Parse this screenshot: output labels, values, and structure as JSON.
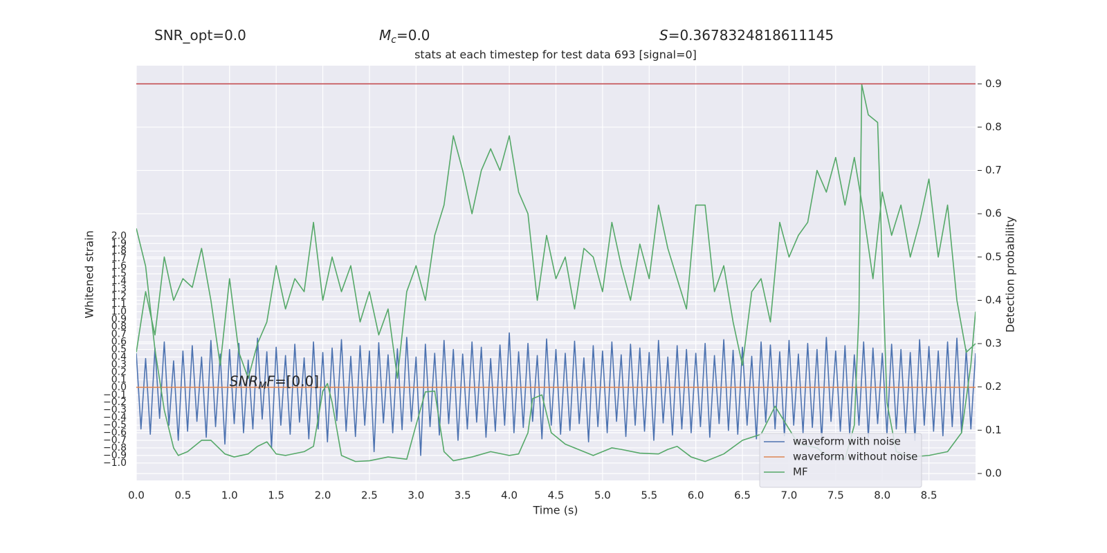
{
  "chart_data": {
    "type": "line",
    "title": "stats at each timestep for test data 693 [signal=0]",
    "stats": [
      {
        "text": "SNR_opt=0.0"
      },
      {
        "base": "M",
        "sub": "c",
        "rest": "=0.0"
      },
      {
        "base": "S",
        "rest": "=0.3678324818611145"
      }
    ],
    "annotation": {
      "base": "SNR",
      "sub": "M",
      "tail": "F",
      "rest": "=[0.0]",
      "x": 1.0,
      "y": 0.0
    },
    "x_label": "Time (s)",
    "y_label": "Whitened strain",
    "y2_label": "Detection probability",
    "xlim": [
      0,
      9
    ],
    "ylim": [
      -1.23,
      4.25
    ],
    "y2lim": [
      -0.016,
      0.942
    ],
    "grid": true,
    "legend": "lower right",
    "xticks": [
      {
        "value": 0,
        "label": "0.0"
      },
      0.5,
      {
        "value": 1,
        "label": "1.0"
      },
      1.5,
      {
        "value": 2,
        "label": "2.0"
      },
      2.5,
      {
        "value": 3,
        "label": "3.0"
      },
      3.5,
      {
        "value": 4,
        "label": "4.0"
      },
      4.5,
      {
        "value": 5,
        "label": "5.0"
      },
      5.5,
      {
        "value": 6,
        "label": "6.0"
      },
      6.5,
      {
        "value": 7,
        "label": "7.0"
      },
      7.5,
      {
        "value": 8,
        "label": "8.0"
      },
      8.5
    ],
    "yticks": [
      {
        "value": -1,
        "label": "−1.0"
      },
      {
        "value": -0.9,
        "label": "−0.9"
      },
      {
        "value": -0.8,
        "label": "−0.8"
      },
      {
        "value": -0.7,
        "label": "−0.7"
      },
      {
        "value": -0.6,
        "label": "−0.6"
      },
      {
        "value": -0.5,
        "label": "−0.5"
      },
      {
        "value": -0.4,
        "label": "−0.4"
      },
      {
        "value": -0.3,
        "label": "−0.3"
      },
      {
        "value": -0.2,
        "label": "−0.2"
      },
      {
        "value": -0.1,
        "label": "−0.1"
      },
      {
        "value": 0,
        "label": "0.0"
      },
      0.1,
      0.2,
      0.3,
      0.4,
      0.5,
      0.6,
      0.7,
      0.8,
      0.9,
      {
        "value": 1,
        "label": "1.0"
      },
      1.1,
      1.2,
      1.3,
      1.4,
      1.5,
      1.6,
      1.7,
      1.8,
      1.9,
      {
        "value": 2,
        "label": "2.0"
      }
    ],
    "y2ticks": [
      {
        "value": 0,
        "label": "0.0"
      },
      0.1,
      0.2,
      0.3,
      0.4,
      0.5,
      0.6,
      0.7,
      0.8,
      0.9
    ],
    "hlines": [
      {
        "value": 0.9,
        "axis": "y2",
        "color": "#c44e52"
      }
    ],
    "series": [
      {
        "name": "waveform with noise",
        "color": "#4c72b0",
        "x": [
          0,
          0.05,
          0.1,
          0.15,
          0.2,
          0.25,
          0.3,
          0.35,
          0.4,
          0.45,
          0.5,
          0.55,
          0.6,
          0.65,
          0.7,
          0.75,
          0.8,
          0.85,
          0.9,
          0.95,
          1,
          1.05,
          1.1,
          1.15,
          1.2,
          1.25,
          1.3,
          1.35,
          1.4,
          1.45,
          1.5,
          1.55,
          1.6,
          1.65,
          1.7,
          1.75,
          1.8,
          1.85,
          1.9,
          1.95,
          2,
          2.05,
          2.1,
          2.15,
          2.2,
          2.25,
          2.3,
          2.35,
          2.4,
          2.45,
          2.5,
          2.55,
          2.6,
          2.65,
          2.7,
          2.75,
          2.8,
          2.85,
          2.9,
          2.95,
          3,
          3.05,
          3.1,
          3.15,
          3.2,
          3.25,
          3.3,
          3.35,
          3.4,
          3.45,
          3.5,
          3.55,
          3.6,
          3.65,
          3.7,
          3.75,
          3.8,
          3.85,
          3.9,
          3.95,
          4,
          4.05,
          4.1,
          4.15,
          4.2,
          4.25,
          4.3,
          4.35,
          4.4,
          4.45,
          4.5,
          4.55,
          4.6,
          4.65,
          4.7,
          4.75,
          4.8,
          4.85,
          4.9,
          4.95,
          5,
          5.05,
          5.1,
          5.15,
          5.2,
          5.25,
          5.3,
          5.35,
          5.4,
          5.45,
          5.5,
          5.55,
          5.6,
          5.65,
          5.7,
          5.75,
          5.8,
          5.85,
          5.9,
          5.95,
          6,
          6.05,
          6.1,
          6.15,
          6.2,
          6.25,
          6.3,
          6.35,
          6.4,
          6.45,
          6.5,
          6.55,
          6.6,
          6.65,
          6.7,
          6.75,
          6.8,
          6.85,
          6.9,
          6.95,
          7,
          7.05,
          7.1,
          7.15,
          7.2,
          7.25,
          7.3,
          7.35,
          7.4,
          7.45,
          7.5,
          7.55,
          7.6,
          7.65,
          7.7,
          7.75,
          7.8,
          7.85,
          7.9,
          7.95,
          8,
          8.05,
          8.1,
          8.15,
          8.2,
          8.25,
          8.3,
          8.35,
          8.4,
          8.45,
          8.5,
          8.55,
          8.6,
          8.65,
          8.7,
          8.75,
          8.8,
          8.85,
          8.9,
          8.95,
          9
        ],
        "values": [
          0.45,
          -0.55,
          0.38,
          -0.62,
          0.52,
          -0.41,
          0.6,
          -0.5,
          0.35,
          -0.7,
          0.48,
          -0.58,
          0.55,
          -0.45,
          0.4,
          -0.66,
          0.62,
          -0.52,
          0.44,
          -0.75,
          0.5,
          -0.48,
          0.58,
          -0.6,
          0.36,
          -0.55,
          0.65,
          -0.42,
          0.47,
          -0.8,
          0.53,
          -0.5,
          0.42,
          -0.62,
          0.57,
          -0.46,
          0.39,
          -0.68,
          0.6,
          -0.55,
          0.46,
          -0.72,
          0.52,
          -0.44,
          0.63,
          -0.58,
          0.41,
          -0.65,
          0.55,
          -0.5,
          0.48,
          -0.85,
          0.59,
          -0.47,
          0.43,
          -0.6,
          0.51,
          -0.56,
          0.66,
          -0.45,
          0.4,
          -0.9,
          0.57,
          -0.52,
          0.45,
          -0.63,
          0.62,
          -0.48,
          0.5,
          -0.7,
          0.44,
          -0.55,
          0.6,
          -0.46,
          0.53,
          -0.66,
          0.38,
          -0.58,
          0.56,
          -0.5,
          0.72,
          -0.6,
          0.47,
          -0.53,
          0.58,
          -0.45,
          0.42,
          -0.68,
          0.64,
          -0.5,
          0.5,
          -0.62,
          0.45,
          -0.57,
          0.61,
          -0.48,
          0.39,
          -0.72,
          0.55,
          -0.52,
          0.48,
          -0.6,
          0.6,
          -0.45,
          0.43,
          -0.65,
          0.57,
          -0.5,
          0.52,
          -0.58,
          0.46,
          -0.7,
          0.62,
          -0.47,
          0.4,
          -0.63,
          0.55,
          -0.55,
          0.5,
          -0.6,
          0.45,
          -0.52,
          0.58,
          -0.66,
          0.42,
          -0.48,
          0.63,
          -0.57,
          0.49,
          -0.62,
          0.53,
          -0.5,
          0.41,
          -0.68,
          0.6,
          -0.46,
          0.56,
          -0.55,
          0.47,
          -0.64,
          0.62,
          -0.5,
          0.44,
          -0.6,
          0.58,
          -0.53,
          0.5,
          -0.7,
          0.66,
          -0.45,
          0.48,
          -0.58,
          0.55,
          -0.62,
          0.43,
          -0.5,
          0.6,
          -0.66,
          0.52,
          -0.48,
          0.45,
          -0.62,
          0.57,
          -0.55,
          0.5,
          -0.6,
          0.46,
          -0.7,
          0.63,
          -0.5,
          0.54,
          -0.58,
          0.48,
          -0.64,
          0.6,
          -0.52,
          0.65,
          -0.6,
          0.5,
          -0.55,
          0.45
        ]
      },
      {
        "name": "waveform without noise",
        "color": "#dd8452",
        "x": [
          0,
          9
        ],
        "values": [
          0,
          0
        ]
      },
      {
        "name": "MF",
        "color": "#55a868",
        "x": [
          0,
          0.1,
          0.2,
          0.3,
          0.4,
          0.45,
          0.55,
          0.7,
          0.8,
          0.95,
          1.05,
          1.2,
          1.3,
          1.4,
          1.5,
          1.6,
          1.8,
          1.9,
          2.0,
          2.05,
          2.1,
          2.2,
          2.35,
          2.5,
          2.7,
          2.9,
          3.0,
          3.1,
          3.2,
          3.3,
          3.4,
          3.6,
          3.8,
          4.0,
          4.1,
          4.2,
          4.25,
          4.35,
          4.45,
          4.6,
          4.9,
          5.1,
          5.2,
          5.4,
          5.6,
          5.7,
          5.8,
          5.95,
          6.1,
          6.3,
          6.5,
          6.7,
          6.85,
          7.0,
          7.1,
          7.3,
          7.4,
          7.6,
          7.7,
          7.75,
          7.78,
          7.85,
          7.95,
          8.05,
          8.15,
          8.3,
          8.5,
          8.7,
          8.85,
          8.95,
          9.0
        ],
        "values": [
          2.1,
          1.6,
          0.5,
          -0.3,
          -0.8,
          -0.9,
          -0.85,
          -0.7,
          -0.7,
          -0.88,
          -0.92,
          -0.88,
          -0.78,
          -0.72,
          -0.88,
          -0.9,
          -0.85,
          -0.78,
          -0.05,
          0.05,
          -0.2,
          -0.9,
          -0.98,
          -0.97,
          -0.92,
          -0.95,
          -0.5,
          -0.06,
          -0.05,
          -0.85,
          -0.97,
          -0.92,
          -0.85,
          -0.9,
          -0.88,
          -0.6,
          -0.15,
          -0.1,
          -0.6,
          -0.75,
          -0.9,
          -0.8,
          -0.82,
          -0.87,
          -0.88,
          -0.82,
          -0.78,
          -0.92,
          -0.98,
          -0.88,
          -0.7,
          -0.62,
          -0.25,
          -0.55,
          -0.75,
          -0.8,
          -0.9,
          -0.95,
          -0.5,
          1.0,
          4.0,
          3.6,
          3.5,
          -0.2,
          -0.85,
          -0.92,
          -0.9,
          -0.85,
          -0.6,
          0.3,
          1.0
        ]
      },
      {
        "color": "#55a868",
        "axis": "y2",
        "x": [
          0,
          0.1,
          0.2,
          0.3,
          0.4,
          0.5,
          0.6,
          0.7,
          0.8,
          0.9,
          1,
          1.1,
          1.2,
          1.3,
          1.4,
          1.5,
          1.6,
          1.7,
          1.8,
          1.9,
          2,
          2.1,
          2.2,
          2.3,
          2.4,
          2.5,
          2.6,
          2.7,
          2.8,
          2.9,
          3,
          3.1,
          3.2,
          3.3,
          3.4,
          3.5,
          3.6,
          3.7,
          3.8,
          3.9,
          4,
          4.1,
          4.2,
          4.3,
          4.4,
          4.5,
          4.6,
          4.7,
          4.8,
          4.9,
          5,
          5.1,
          5.2,
          5.3,
          5.4,
          5.5,
          5.6,
          5.7,
          5.8,
          5.9,
          6,
          6.1,
          6.2,
          6.3,
          6.4,
          6.5,
          6.6,
          6.7,
          6.8,
          6.9,
          7,
          7.1,
          7.2,
          7.3,
          7.4,
          7.5,
          7.6,
          7.7,
          7.8,
          7.9,
          8,
          8.1,
          8.2,
          8.3,
          8.4,
          8.5,
          8.6,
          8.7,
          8.8,
          8.9,
          9
        ],
        "values": [
          0.28,
          0.42,
          0.32,
          0.5,
          0.4,
          0.45,
          0.43,
          0.52,
          0.4,
          0.25,
          0.45,
          0.28,
          0.22,
          0.3,
          0.35,
          0.48,
          0.38,
          0.45,
          0.42,
          0.58,
          0.4,
          0.5,
          0.42,
          0.48,
          0.35,
          0.42,
          0.32,
          0.38,
          0.22,
          0.42,
          0.48,
          0.4,
          0.55,
          0.62,
          0.78,
          0.7,
          0.6,
          0.7,
          0.75,
          0.7,
          0.78,
          0.65,
          0.6,
          0.4,
          0.55,
          0.45,
          0.5,
          0.38,
          0.52,
          0.5,
          0.42,
          0.58,
          0.48,
          0.4,
          0.53,
          0.45,
          0.62,
          0.52,
          0.45,
          0.38,
          0.62,
          0.62,
          0.42,
          0.48,
          0.35,
          0.25,
          0.42,
          0.45,
          0.35,
          0.58,
          0.5,
          0.55,
          0.58,
          0.7,
          0.65,
          0.73,
          0.62,
          0.73,
          0.6,
          0.45,
          0.65,
          0.55,
          0.62,
          0.5,
          0.58,
          0.68,
          0.5,
          0.62,
          0.4,
          0.28,
          0.3
        ]
      }
    ]
  }
}
